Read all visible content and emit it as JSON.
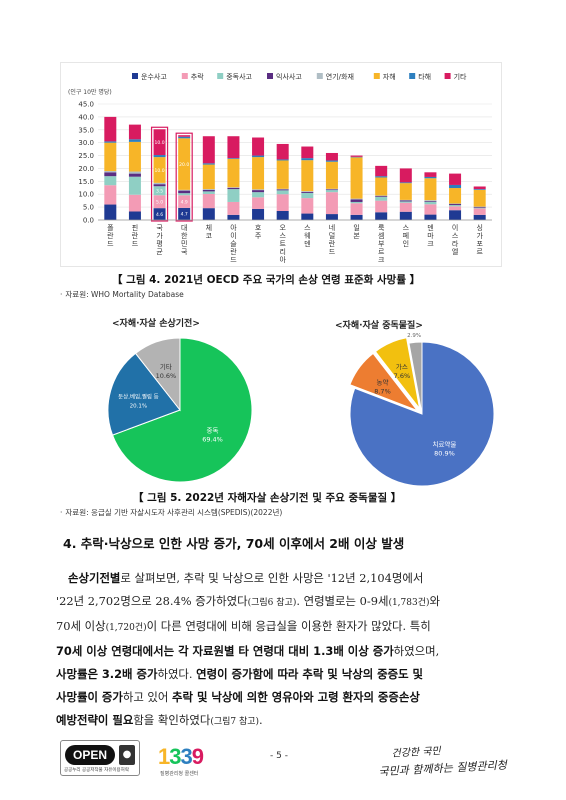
{
  "figure4": {
    "unit_label": "(인구 10만 명당)",
    "caption": "【 그림 4. 2021년 OECD 주요 국가의 손상 연령 표준화 사망률 】",
    "source": "자료원: WHO Mortality Database",
    "chart_data": {
      "type": "bar",
      "stacked": true,
      "ylim": [
        0,
        45
      ],
      "yticks": [
        "0.0",
        "5.0",
        "10.0",
        "15.0",
        "20.0",
        "25.0",
        "30.0",
        "35.0",
        "40.0",
        "45.0"
      ],
      "categories": [
        "폴란드",
        "핀란드",
        "국가평균",
        "대한민국",
        "체코",
        "아이슬란드",
        "호주",
        "오스트리아",
        "스웨덴",
        "네덜란드",
        "일본",
        "룩셈부르크",
        "스페인",
        "덴마크",
        "이스라엘",
        "싱가포르"
      ],
      "highlighted": [
        "국가평균",
        "대한민국"
      ],
      "grid": true,
      "legend_position": "top",
      "series": [
        {
          "name": "운수사고",
          "color": "#1f3a93",
          "values": [
            6.0,
            3.3,
            4.6,
            4.7,
            4.6,
            2.0,
            4.3,
            3.5,
            2.5,
            2.3,
            2.0,
            3.0,
            3.2,
            2.1,
            3.8,
            2.0
          ]
        },
        {
          "name": "추락",
          "color": "#f39bb5",
          "values": [
            7.5,
            6.5,
            5.0,
            4.9,
            5.5,
            5.0,
            4.5,
            6.5,
            6.0,
            8.5,
            4.5,
            4.5,
            3.5,
            4.0,
            1.5,
            2.5
          ]
        },
        {
          "name": "중독사고",
          "color": "#8fcfc4",
          "values": [
            3.5,
            7.0,
            3.5,
            0.8,
            1.0,
            5.0,
            2.0,
            1.5,
            2.0,
            0.8,
            0.5,
            1.5,
            0.5,
            1.0,
            0.5,
            0.3
          ]
        },
        {
          "name": "익사사고",
          "color": "#5a2d82",
          "values": [
            1.5,
            1.2,
            0.8,
            1.0,
            0.6,
            0.5,
            0.8,
            0.4,
            0.4,
            0.3,
            1.0,
            0.3,
            0.4,
            0.3,
            0.4,
            0.3
          ]
        },
        {
          "name": "연기/화재",
          "color": "#b0bec5",
          "values": [
            0.5,
            0.8,
            0.5,
            0.3,
            0.3,
            0.2,
            0.3,
            0.2,
            0.3,
            0.2,
            0.3,
            0.2,
            0.2,
            0.3,
            0.2,
            0.1
          ]
        },
        {
          "name": "자해",
          "color": "#f7b528",
          "values": [
            11.0,
            11.5,
            10.0,
            20.0,
            9.5,
            11.0,
            12.5,
            11.0,
            12.0,
            10.5,
            16.0,
            7.0,
            6.5,
            8.5,
            6.0,
            6.5
          ]
        },
        {
          "name": "타해",
          "color": "#2d7fbf",
          "values": [
            0.5,
            1.0,
            0.8,
            0.6,
            0.5,
            0.3,
            0.6,
            0.4,
            0.8,
            0.5,
            0.2,
            0.5,
            0.3,
            0.5,
            1.2,
            0.3
          ]
        },
        {
          "name": "기타",
          "color": "#d81b60",
          "values": [
            9.5,
            5.7,
            10.0,
            0.6,
            10.5,
            8.5,
            7.0,
            6.0,
            4.5,
            2.9,
            0.5,
            4.0,
            5.4,
            1.8,
            4.4,
            1.0
          ]
        }
      ],
      "data_labels": {
        "국가평균": [
          "4.6",
          "5.0",
          "3.5",
          "0.8",
          "",
          "10.0",
          "",
          "10.0"
        ],
        "대한민국": [
          "4.7",
          "4.9",
          "0.8",
          "1.0",
          "",
          "20.0",
          "",
          "0.6"
        ]
      }
    }
  },
  "figure5": {
    "caption": "【 그림 5. 2022년 자해자살 손상기전 및 주요 중독물질 】",
    "source": "자료원: 응급실 기반 자살시도자 사후관리 시스템(SPEDIS)(2022년)",
    "pies": [
      {
        "title": "<자해·자살 손상기전>",
        "chart_data": {
          "type": "pie",
          "slices": [
            {
              "label": "중독",
              "value": 69.4,
              "value_label": "69.4%",
              "color": "#16c45a",
              "text_color": "#ffffff"
            },
            {
              "label": "둔상,베임,찔림 등",
              "value": 20.1,
              "value_label": "20.1%",
              "color": "#2171a8",
              "text_color": "#ffffff"
            },
            {
              "label": "기타",
              "value": 10.6,
              "value_label": "10.6%",
              "color": "#b3b3b3",
              "text_color": "#333333"
            }
          ]
        }
      },
      {
        "title": "<자해·자살 중독물질>",
        "chart_data": {
          "type": "pie",
          "slices": [
            {
              "label": "치료약물",
              "value": 80.9,
              "value_label": "80.9%",
              "color": "#4a72c4",
              "text_color": "#ffffff"
            },
            {
              "label": "농약",
              "value": 8.7,
              "value_label": "8.7%",
              "color": "#ed7d31",
              "text_color": "#333333"
            },
            {
              "label": "가스",
              "value": 7.6,
              "value_label": "7.6%",
              "color": "#f2c00f",
              "text_color": "#333333"
            },
            {
              "label": "기타 독성물질",
              "value": 2.9,
              "value_label": "2.9%",
              "color": "#a5a5a5",
              "text_color": "#666666"
            }
          ]
        }
      }
    ]
  },
  "section": {
    "heading": "4. 추락·낙상으로 인한 사망 증가, 70세 이후에서 2배 이상 발생"
  },
  "body": {
    "l1a": "손상기전별",
    "l1b": "로 살펴보면, 추락 및 낙상으로 인한 사망은 '12년 2,104명에서",
    "l2a": "'22년 2,702명으로 28.4% 증가하였다",
    "l2b": "(그림6 참고)",
    "l2c": ". 연령별로는 0-9세",
    "l2d": "(1,783건)",
    "l2e": "와",
    "l3a": "70세 이상",
    "l3b": "(1,720건)",
    "l3c": "이 다른 연령대에 비해 응급실을 이용한 환자가 많았다. 특히",
    "l4a": "70세 이상 연령대에서는 각 자료원별 타 연령대 대비 1.3배 이상 증가",
    "l4b": "하였으며,",
    "l5a": "사망률은 3.2배 증가",
    "l5b": "하였다. ",
    "l5c": "연령이 증가함에 따라 추락 및 낙상의 중증도 및",
    "l6a": "사망률이 증가",
    "l6b": "하고 있어 ",
    "l6c": "추락 및 낙상에 의한 영유아와 고령 환자의 중증손상",
    "l7a": "예방전략이 필요",
    "l7b": "함을 확인하였다",
    "l7c": "(그림7 참고)",
    "l7d": "."
  },
  "footer": {
    "open_label": "OPEN",
    "open_sub": "공공누리 공공저작물 자유이용허락",
    "hotline_number": "1339",
    "hotline_sub": "질병관리청 콜센터",
    "page_number": "- 5 -",
    "slogan_line1": "건강한 국민",
    "slogan_line2": "국민과 함께하는 질병관리청"
  }
}
